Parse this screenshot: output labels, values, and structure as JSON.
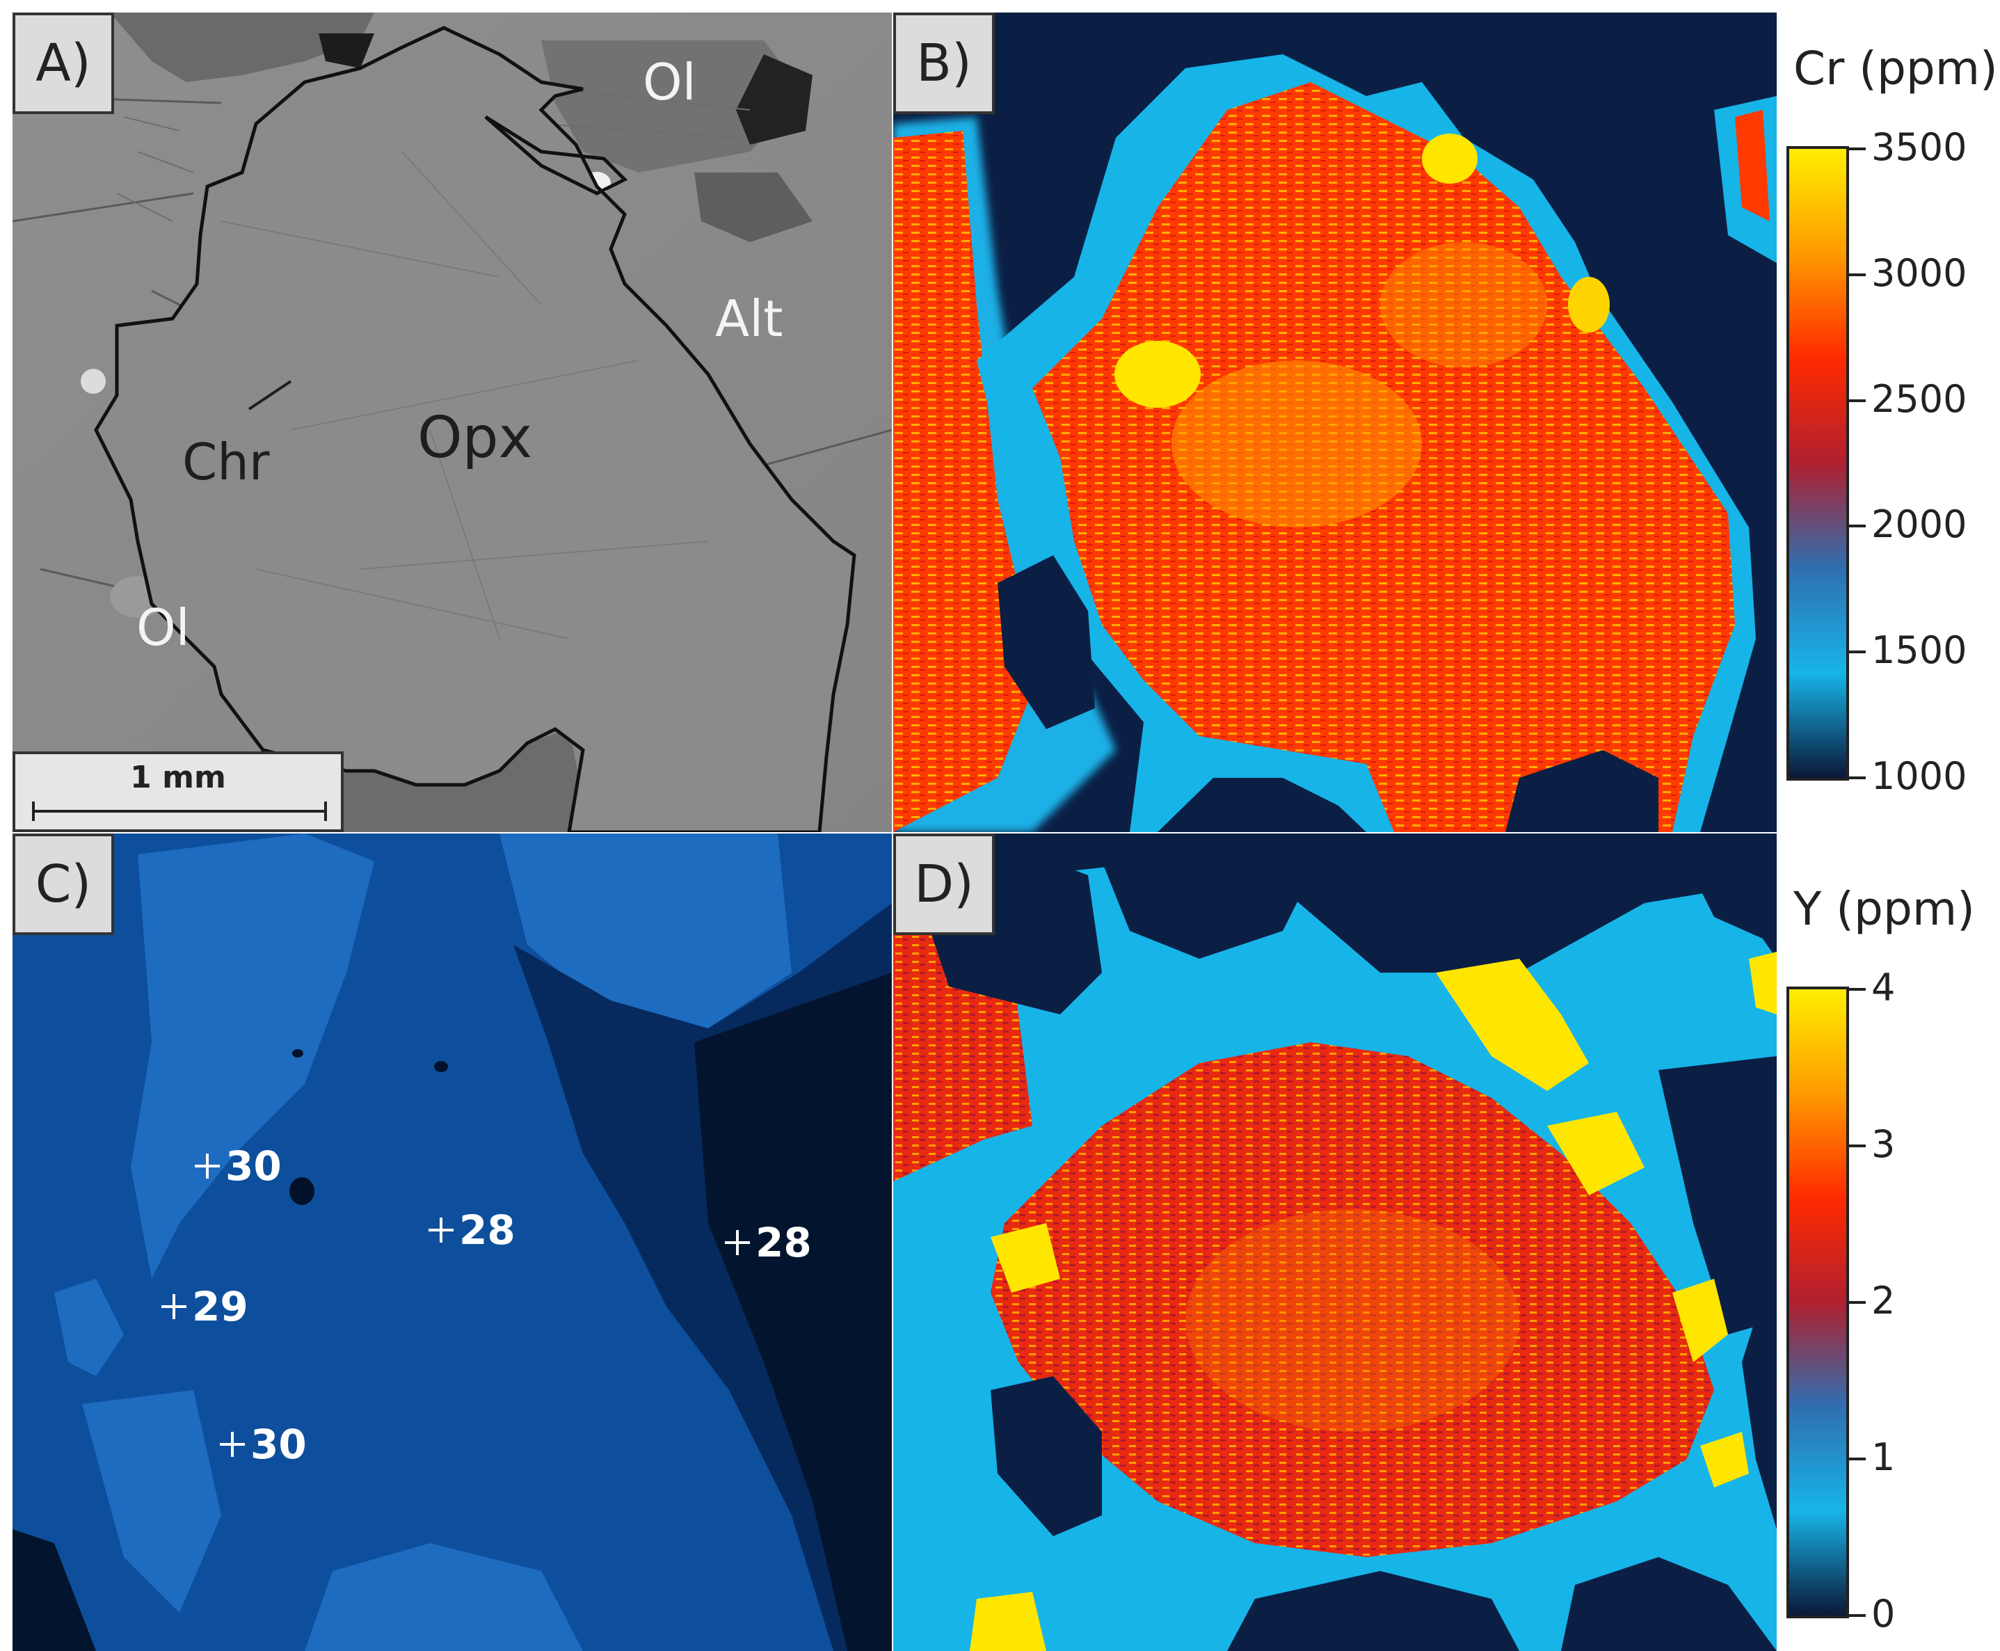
{
  "panels": {
    "a": {
      "label": "A)",
      "minerals": [
        "Ol",
        "Alt",
        "Chr",
        "Opx",
        "Ol"
      ],
      "scale_bar": "1 mm"
    },
    "b": {
      "label": "B)"
    },
    "c": {
      "label": "C)",
      "points": [
        "30",
        "28",
        "28",
        "29",
        "30"
      ]
    },
    "d": {
      "label": "D)"
    }
  },
  "colorbars": {
    "cr": {
      "title": "Cr (ppm)",
      "ticks": [
        "3500",
        "3000",
        "2500",
        "2000",
        "1500",
        "1000"
      ],
      "colors": [
        "#ffee00",
        "#ff9a00",
        "#ff2a00",
        "#b02030",
        "#2f6fb0",
        "#17b4e8",
        "#0a1838"
      ]
    },
    "y": {
      "title": "Y (ppm)",
      "ticks": [
        "4",
        "3",
        "2",
        "1",
        "0"
      ],
      "colors": [
        "#ffee00",
        "#ff9a00",
        "#ff2a00",
        "#b02030",
        "#2f6fb0",
        "#17b4e8",
        "#0a1838"
      ]
    }
  }
}
